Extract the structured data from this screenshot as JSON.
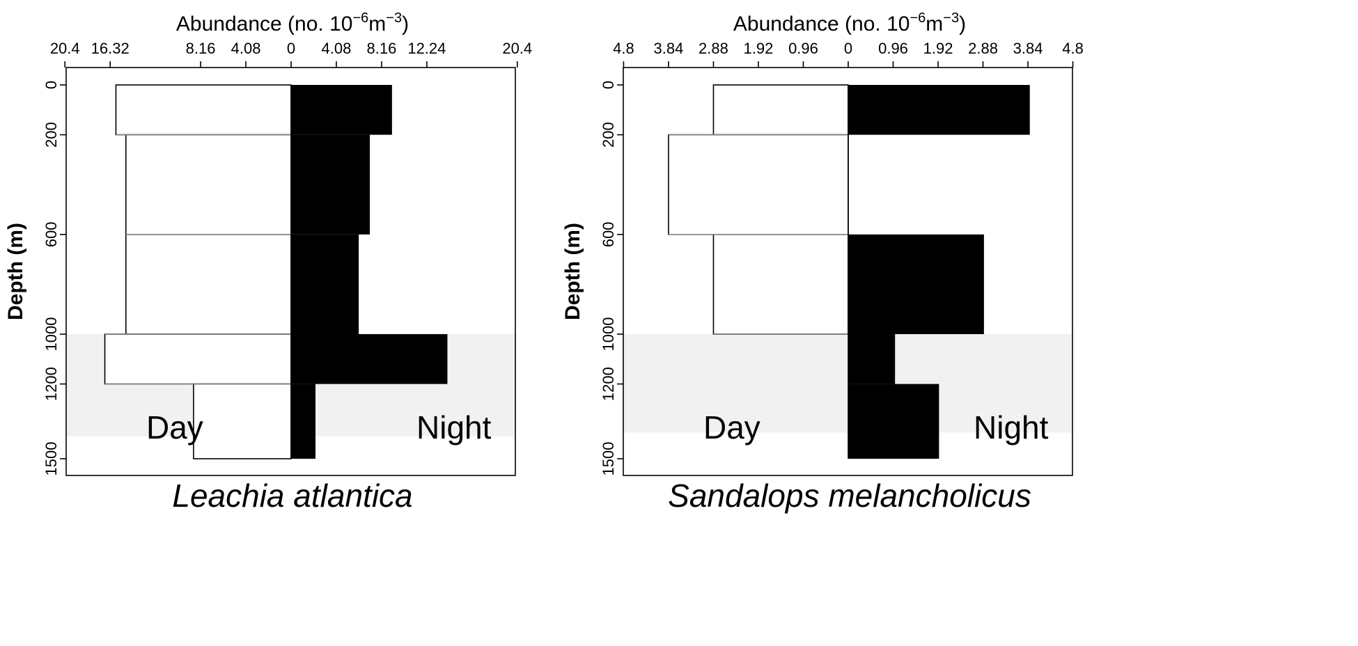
{
  "chart_data": [
    {
      "type": "bar",
      "orientation": "horizontal-back-to-back",
      "title": "Leachia atlantica",
      "xlabel": "Abundance (no. 10",
      "xlabel_superscript_1": "−6",
      "xlabel_unit": "m",
      "xlabel_superscript_2": "−3",
      "xlabel_end": ")",
      "ylabel": "Depth (m)",
      "x_tick_labels": [
        "20.4",
        "16.32",
        "8.16",
        "4.08",
        "0",
        "4.08",
        "8.16",
        "12.24",
        "20.4"
      ],
      "x_tick_values": [
        -20.4,
        -16.32,
        -8.16,
        -4.08,
        0,
        4.08,
        8.16,
        12.24,
        20.4
      ],
      "y_tick_values": [
        0,
        200,
        600,
        1000,
        1200,
        1500
      ],
      "y_tick_labels": [
        "0",
        "200",
        "600",
        "1000",
        "1200",
        "1500"
      ],
      "xlim": [
        -24.3,
        20.4
      ],
      "ylim": [
        -80,
        1570
      ],
      "shaded_band": [
        1000,
        1410
      ],
      "day_label": "Day",
      "night_label": "Night",
      "depth_bins": [
        [
          0,
          200
        ],
        [
          200,
          600
        ],
        [
          600,
          1000
        ],
        [
          1000,
          1200
        ],
        [
          1200,
          1500
        ]
      ],
      "series": [
        {
          "name": "Day",
          "values": [
            15.8,
            14.9,
            14.9,
            16.8,
            8.8
          ]
        },
        {
          "name": "Night",
          "values": [
            9.1,
            7.1,
            6.1,
            14.1,
            2.2
          ]
        }
      ],
      "colors": {
        "day_fill": "#ffffff",
        "night_fill": "#000000",
        "shade": "#f1f1f1",
        "bin_line": "#888888"
      }
    },
    {
      "type": "bar",
      "orientation": "horizontal-back-to-back",
      "title": "Sandalops melancholicus",
      "xlabel": "Abundance (no. 10",
      "xlabel_superscript_1": "−6",
      "xlabel_unit": "m",
      "xlabel_superscript_2": "−3",
      "xlabel_end": ")",
      "ylabel": "Depth (m)",
      "x_tick_labels": [
        "4.8",
        "3.84",
        "2.88",
        "1.92",
        "0.96",
        "0",
        "0.96",
        "1.92",
        "2.88",
        "3.84",
        "4.8"
      ],
      "x_tick_values": [
        -4.8,
        -3.84,
        -2.88,
        -1.92,
        -0.96,
        0,
        0.96,
        1.92,
        2.88,
        3.84,
        4.8
      ],
      "y_tick_values": [
        0,
        200,
        600,
        1000,
        1200,
        1500
      ],
      "y_tick_labels": [
        "0",
        "200",
        "600",
        "1000",
        "1200",
        "1500"
      ],
      "xlim": [
        -4.8,
        4.8
      ],
      "ylim": [
        -80,
        1570
      ],
      "shaded_band": [
        1000,
        1395
      ],
      "day_label": "Day",
      "night_label": "Night",
      "depth_bins": [
        [
          0,
          200
        ],
        [
          200,
          600
        ],
        [
          600,
          1000
        ],
        [
          1000,
          1200
        ],
        [
          1200,
          1500
        ]
      ],
      "series": [
        {
          "name": "Day",
          "values": [
            2.88,
            3.84,
            2.88,
            0,
            0
          ]
        },
        {
          "name": "Night",
          "values": [
            3.88,
            0,
            2.9,
            1.0,
            1.94
          ]
        }
      ],
      "colors": {
        "day_fill": "#ffffff",
        "night_fill": "#000000",
        "shade": "#f1f1f1",
        "bin_line": "#888888"
      }
    }
  ]
}
